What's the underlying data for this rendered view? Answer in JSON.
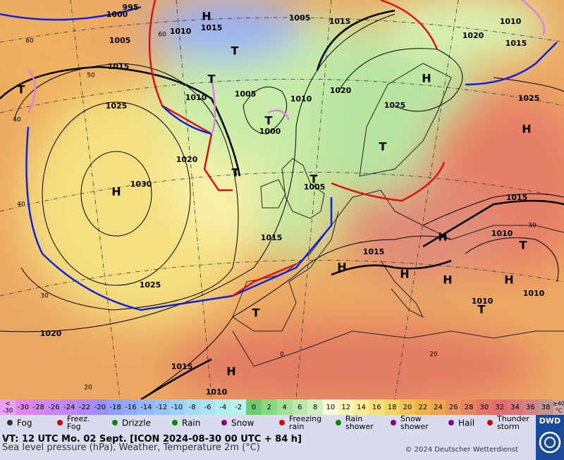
{
  "map": {
    "centers": [
      "H",
      "H",
      "H",
      "H",
      "H",
      "H",
      "H",
      "H",
      "H",
      "H",
      "T",
      "T",
      "T",
      "T",
      "T",
      "T",
      "T",
      "T",
      "T",
      "T"
    ],
    "isobar_labels": [
      "995",
      "1000",
      "1005",
      "1010",
      "1015",
      "1005",
      "1015",
      "1020",
      "1010",
      "1015",
      "1015",
      "1025",
      "1010",
      "1005",
      "1010",
      "1020",
      "1025",
      "1000",
      "1020",
      "1030",
      "1005",
      "1015",
      "1015",
      "1015",
      "1010",
      "1025",
      "1010",
      "1010",
      "1020",
      "1015",
      "1010",
      "1025"
    ],
    "lat_labels": [
      "60",
      "50",
      "40",
      "30",
      "20",
      "60",
      "40",
      "30",
      "20",
      "0"
    ]
  },
  "scale": {
    "low": {
      "sign": "<",
      "value": "-30"
    },
    "steps": [
      {
        "label": "-30",
        "color": "#e088e8"
      },
      {
        "label": "-28",
        "color": "#d488ec"
      },
      {
        "label": "-26",
        "color": "#c888f0"
      },
      {
        "label": "-24",
        "color": "#bc88f4"
      },
      {
        "label": "-22",
        "color": "#b088f8"
      },
      {
        "label": "-20",
        "color": "#9c90fc"
      },
      {
        "label": "-18",
        "color": "#90a0fc"
      },
      {
        "label": "-16",
        "color": "#90acfc"
      },
      {
        "label": "-14",
        "color": "#94b8fc"
      },
      {
        "label": "-12",
        "color": "#98c4fc"
      },
      {
        "label": "-10",
        "color": "#9cd0fc"
      },
      {
        "label": "-8",
        "color": "#a4dcf8"
      },
      {
        "label": "-6",
        "color": "#a8e4f4"
      },
      {
        "label": "-4",
        "color": "#b0ecf0"
      },
      {
        "label": "-2",
        "color": "#b8f4ec"
      },
      {
        "label": "0",
        "color": "#70cc70"
      },
      {
        "label": "2",
        "color": "#88d884"
      },
      {
        "label": "4",
        "color": "#a0e098"
      },
      {
        "label": "6",
        "color": "#b8e8ac"
      },
      {
        "label": "8",
        "color": "#d0f0c0"
      },
      {
        "label": "10",
        "color": "#fafae0"
      },
      {
        "label": "12",
        "color": "#f8f4b8"
      },
      {
        "label": "14",
        "color": "#f8ec98"
      },
      {
        "label": "16",
        "color": "#f8e078"
      },
      {
        "label": "18",
        "color": "#f4d460"
      },
      {
        "label": "20",
        "color": "#f0c450"
      },
      {
        "label": "22",
        "color": "#eeb448"
      },
      {
        "label": "24",
        "color": "#eca450"
      },
      {
        "label": "26",
        "color": "#ea9458"
      },
      {
        "label": "28",
        "color": "#e88460"
      },
      {
        "label": "30",
        "color": "#e67468"
      },
      {
        "label": "32",
        "color": "#e46c70"
      },
      {
        "label": "34",
        "color": "#dc7478"
      },
      {
        "label": "36",
        "color": "#d08488"
      },
      {
        "label": "38",
        "color": "#c49494"
      }
    ],
    "high": {
      "sign": "≥40",
      "unit": "°C"
    }
  },
  "legend": [
    "Fog",
    "Freez. Fog",
    "Drizzle",
    "Rain",
    "Snow",
    "Freezing rain",
    "Rain shower",
    "Snow shower",
    "Hail",
    "Thunder storm"
  ],
  "footer": {
    "line1": "VT: 12 UTC Mo.  02 Sept. [ICON 2024-08-30  00 UTC + 84 h]",
    "line2": "Sea level pressure (hPa), Weather, Temperature 2m (°C)",
    "copyright": "© 2024 Deutscher Wetterdienst",
    "logo": "DWD"
  }
}
